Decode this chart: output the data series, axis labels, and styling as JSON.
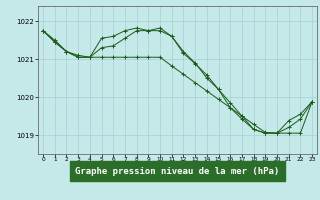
{
  "background_color": "#c5e8e8",
  "grid_color": "#a8d0d0",
  "line_color": "#1a5c1a",
  "marker_color": "#1a5c1a",
  "xlabel": "Graphe pression niveau de la mer (hPa)",
  "xlabel_fontsize": 6.5,
  "xlabel_color": "#1a5c1a",
  "xlabel_bg": "#2a6e2a",
  "ytick_labels": [
    "1019",
    "1020",
    "1021",
    "1022"
  ],
  "yticks": [
    1019,
    1020,
    1021,
    1022
  ],
  "xticks": [
    0,
    1,
    2,
    3,
    4,
    5,
    6,
    7,
    8,
    9,
    10,
    11,
    12,
    13,
    14,
    15,
    16,
    17,
    18,
    19,
    20,
    21,
    22,
    23
  ],
  "ylim": [
    1018.5,
    1022.4
  ],
  "xlim": [
    -0.4,
    23.4
  ],
  "series1_x": [
    0,
    1,
    2,
    3,
    4,
    5,
    6,
    7,
    8,
    9,
    10,
    11,
    12,
    13,
    14,
    15,
    16,
    17,
    18,
    19,
    20,
    21,
    22,
    23
  ],
  "series1_y": [
    1021.75,
    1021.5,
    1021.2,
    1021.05,
    1021.05,
    1021.55,
    1021.6,
    1021.75,
    1021.82,
    1021.75,
    1021.82,
    1021.6,
    1021.2,
    1020.9,
    1020.5,
    1020.2,
    1019.85,
    1019.5,
    1019.15,
    1019.05,
    1019.05,
    1019.38,
    1019.55,
    1019.88
  ],
  "series2_x": [
    0,
    1,
    2,
    3,
    4,
    5,
    6,
    7,
    8,
    9,
    10,
    11,
    12,
    13,
    14,
    15,
    16,
    17,
    18,
    19,
    20,
    21,
    22,
    23
  ],
  "series2_y": [
    1021.75,
    1021.45,
    1021.2,
    1021.05,
    1021.05,
    1021.05,
    1021.05,
    1021.05,
    1021.05,
    1021.05,
    1021.05,
    1020.82,
    1020.6,
    1020.38,
    1020.16,
    1019.94,
    1019.72,
    1019.5,
    1019.28,
    1019.07,
    1019.05,
    1019.05,
    1019.05,
    1019.88
  ],
  "series3_x": [
    0,
    1,
    2,
    3,
    4,
    5,
    6,
    7,
    8,
    9,
    10,
    11,
    12,
    13,
    14,
    15,
    16,
    17,
    18,
    19,
    20,
    21,
    22,
    23
  ],
  "series3_y": [
    1021.75,
    1021.45,
    1021.2,
    1021.1,
    1021.05,
    1021.3,
    1021.35,
    1021.55,
    1021.75,
    1021.75,
    1021.75,
    1021.6,
    1021.15,
    1020.88,
    1020.58,
    1020.2,
    1019.72,
    1019.42,
    1019.15,
    1019.05,
    1019.05,
    1019.2,
    1019.42,
    1019.88
  ]
}
